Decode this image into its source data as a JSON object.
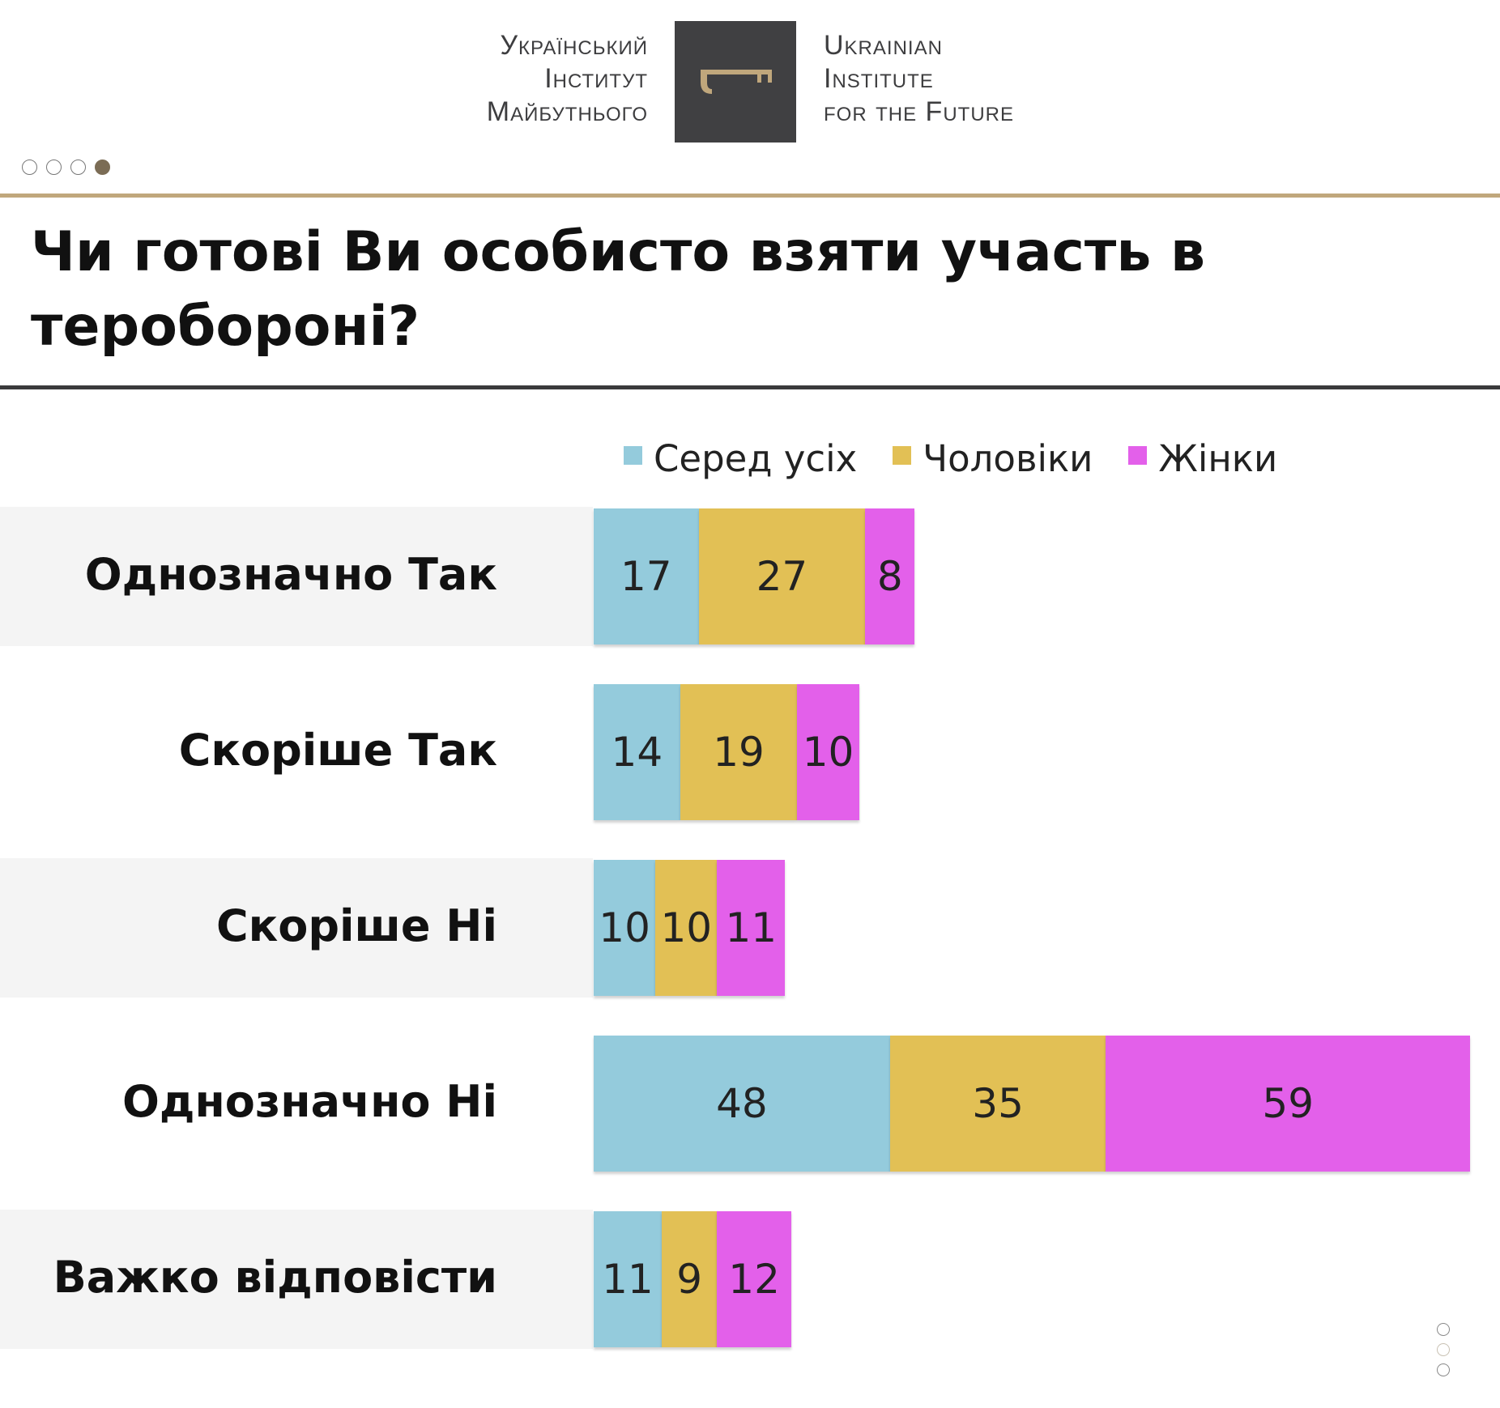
{
  "logo": {
    "ua_lines": [
      "Український",
      "Інститут",
      "Майбутнього"
    ],
    "en_lines": [
      "Ukrainian",
      "Institute",
      "for the Future"
    ],
    "icon": "key-icon"
  },
  "title": "Чи готові Ви особисто взяти участь в теробороні?",
  "colors": {
    "all": "#94cbdc",
    "men": "#e2c055",
    "women": "#e360ea",
    "gold": "#c0a77c"
  },
  "chart_data": {
    "type": "bar",
    "orientation": "horizontal",
    "stacked": true,
    "title": "Чи готові Ви особисто взяти участь в теробороні?",
    "categories": [
      "Однозначно Так",
      "Скоріше Так",
      "Скоріше Ні",
      "Однозначно Ні",
      "Важко відповісти"
    ],
    "series": [
      {
        "name": "Серед усіх",
        "color": "#94cbdc",
        "values": [
          17,
          14,
          10,
          48,
          11
        ]
      },
      {
        "name": "Чоловіки",
        "color": "#e2c055",
        "values": [
          27,
          19,
          10,
          35,
          9
        ]
      },
      {
        "name": "Жінки",
        "color": "#e360ea",
        "values": [
          8,
          10,
          11,
          59,
          12
        ]
      }
    ],
    "legend": "top",
    "grid": false
  }
}
